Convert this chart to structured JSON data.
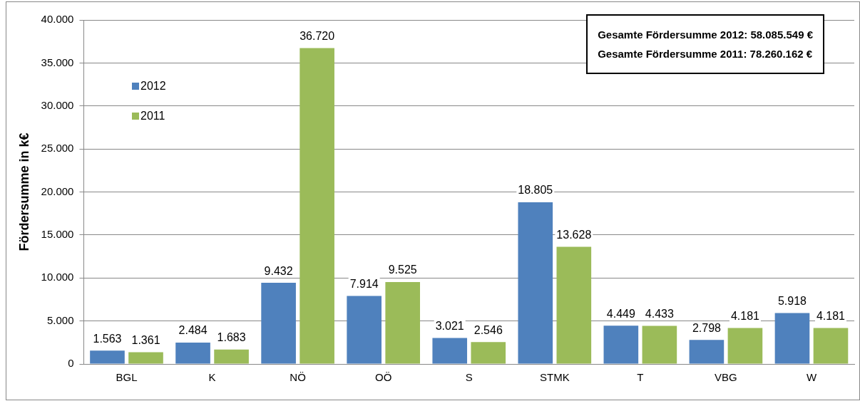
{
  "chart_data": {
    "type": "bar",
    "ylabel": "Fördersumme in k€",
    "categories": [
      "BGL",
      "K",
      "NÖ",
      "OÖ",
      "S",
      "STMK",
      "T",
      "VBG",
      "W"
    ],
    "series": [
      {
        "name": "2012",
        "color": "#4f81bd",
        "values": [
          1563,
          2484,
          9432,
          7914,
          3021,
          18805,
          4449,
          2798,
          5918
        ],
        "value_labels": [
          "1.563",
          "2.484",
          "9.432",
          "7.914",
          "3.021",
          "18.805",
          "4.449",
          "2.798",
          "5.918"
        ]
      },
      {
        "name": "2011",
        "color": "#9bbb59",
        "values": [
          1361,
          1683,
          36720,
          9525,
          2546,
          13628,
          4433,
          4181,
          4181
        ],
        "value_labels": [
          "1.361",
          "1.683",
          "36.720",
          "9.525",
          "2.546",
          "13.628",
          "4.433",
          "4.181",
          "4.181"
        ]
      }
    ],
    "ylim": [
      0,
      40000
    ],
    "yticks": [
      {
        "value": 0,
        "label": "0"
      },
      {
        "value": 5000,
        "label": "5.000"
      },
      {
        "value": 10000,
        "label": "10.000"
      },
      {
        "value": 15000,
        "label": "15.000"
      },
      {
        "value": 20000,
        "label": "20.000"
      },
      {
        "value": 25000,
        "label": "25.000"
      },
      {
        "value": 30000,
        "label": "30.000"
      },
      {
        "value": 35000,
        "label": "35.000"
      },
      {
        "value": 40000,
        "label": "40.000"
      }
    ],
    "grid": "y",
    "legend": "top left",
    "annotations": [
      "Gesamte Fördersumme 2012: 58.085.549 €",
      "Gesamte Fördersumme 2011: 78.260.162 €"
    ]
  }
}
